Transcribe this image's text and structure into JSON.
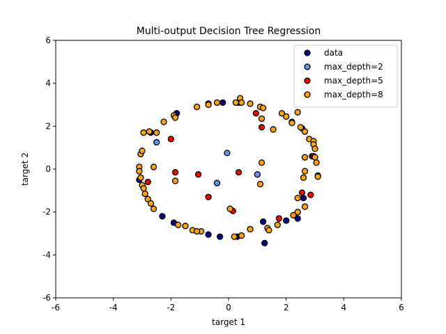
{
  "chart_data": {
    "type": "scatter",
    "title": "Multi-output Decision Tree Regression",
    "xlabel": "target 1",
    "ylabel": "target 2",
    "xlim": [
      -6,
      6
    ],
    "ylim": [
      -6,
      6
    ],
    "xticks": [
      -6,
      -4,
      -2,
      0,
      2,
      4,
      6
    ],
    "yticks": [
      -6,
      -4,
      -2,
      0,
      2,
      4,
      6
    ],
    "grid": false,
    "legend_position": "top-right",
    "series": [
      {
        "name": "data",
        "color": "#000080",
        "points": [
          [
            -2.3,
            -2.2
          ],
          [
            -1.9,
            -2.5
          ],
          [
            -0.7,
            -3.05
          ],
          [
            -0.3,
            -3.15
          ],
          [
            0.3,
            -3.15
          ],
          [
            1.2,
            -2.45
          ],
          [
            1.25,
            -3.45
          ],
          [
            2.0,
            -2.4
          ],
          [
            2.4,
            -2.3
          ],
          [
            2.6,
            -1.35
          ],
          [
            2.9,
            0.6
          ],
          [
            3.1,
            -0.3
          ],
          [
            -1.8,
            2.6
          ],
          [
            -0.7,
            3.05
          ],
          [
            -0.2,
            3.1
          ],
          [
            2.2,
            2.2
          ],
          [
            0.35,
            3.1
          ],
          [
            -2.7,
            1.7
          ],
          [
            -3.1,
            -0.5
          ],
          [
            2.55,
            1.9
          ]
        ]
      },
      {
        "name": "max_depth=2",
        "color": "#6495ed",
        "points": [
          [
            -2.5,
            1.25
          ],
          [
            -0.05,
            0.75
          ],
          [
            -0.4,
            -0.65
          ],
          [
            1.0,
            -0.25
          ]
        ]
      },
      {
        "name": "max_depth=5",
        "color": "#ff0000",
        "points": [
          [
            -2.0,
            1.4
          ],
          [
            -1.85,
            -0.15
          ],
          [
            -1.05,
            -0.25
          ],
          [
            0.35,
            -0.15
          ],
          [
            -0.7,
            -1.3
          ],
          [
            -2.8,
            -0.6
          ],
          [
            0.95,
            2.6
          ],
          [
            1.15,
            1.95
          ],
          [
            1.75,
            -2.3
          ],
          [
            0.15,
            -1.95
          ],
          [
            2.55,
            -1.1
          ],
          [
            2.85,
            -1.2
          ],
          [
            2.95,
            0.6
          ]
        ]
      },
      {
        "name": "max_depth=8",
        "color": "#ffa500",
        "points": [
          [
            -3.1,
            0.1
          ],
          [
            -3.1,
            -0.1
          ],
          [
            -3.05,
            -0.4
          ],
          [
            -3.0,
            -0.75
          ],
          [
            -2.95,
            -0.9
          ],
          [
            -2.9,
            -1.15
          ],
          [
            -2.8,
            -1.4
          ],
          [
            -2.7,
            -1.6
          ],
          [
            -2.6,
            -1.85
          ],
          [
            -3.05,
            0.7
          ],
          [
            -3.0,
            0.85
          ],
          [
            -2.95,
            1.7
          ],
          [
            -2.75,
            1.75
          ],
          [
            -2.5,
            1.7
          ],
          [
            -2.25,
            2.2
          ],
          [
            -1.9,
            2.5
          ],
          [
            -1.85,
            2.4
          ],
          [
            -1.1,
            2.9
          ],
          [
            -0.7,
            3.0
          ],
          [
            -0.4,
            3.1
          ],
          [
            0.25,
            3.1
          ],
          [
            0.4,
            3.3
          ],
          [
            0.45,
            3.1
          ],
          [
            0.75,
            3.05
          ],
          [
            1.1,
            2.9
          ],
          [
            1.2,
            2.85
          ],
          [
            1.15,
            2.35
          ],
          [
            1.55,
            1.85
          ],
          [
            1.85,
            2.6
          ],
          [
            2.0,
            2.45
          ],
          [
            2.2,
            2.15
          ],
          [
            2.4,
            2.65
          ],
          [
            2.5,
            1.95
          ],
          [
            2.65,
            1.75
          ],
          [
            2.8,
            1.4
          ],
          [
            2.95,
            1.3
          ],
          [
            2.95,
            1.15
          ],
          [
            3.0,
            0.95
          ],
          [
            2.65,
            0.55
          ],
          [
            3.0,
            0.55
          ],
          [
            3.05,
            0.3
          ],
          [
            2.65,
            -0.1
          ],
          [
            2.6,
            -0.4
          ],
          [
            3.1,
            -0.35
          ],
          [
            2.4,
            -1.35
          ],
          [
            2.65,
            -1.75
          ],
          [
            2.4,
            -2.0
          ],
          [
            2.25,
            -2.15
          ],
          [
            1.7,
            -2.6
          ],
          [
            1.35,
            -2.75
          ],
          [
            1.4,
            -2.85
          ],
          [
            0.75,
            -2.8
          ],
          [
            0.45,
            -3.1
          ],
          [
            0.2,
            -3.15
          ],
          [
            0.05,
            -1.85
          ],
          [
            -0.95,
            -2.9
          ],
          [
            -1.25,
            -2.85
          ],
          [
            -1.5,
            -2.65
          ],
          [
            -1.75,
            -2.6
          ],
          [
            -1.85,
            -0.55
          ],
          [
            -2.6,
            0.1
          ],
          [
            1.15,
            0.3
          ],
          [
            1.1,
            -0.7
          ],
          [
            -1.1,
            -2.9
          ]
        ]
      }
    ]
  }
}
